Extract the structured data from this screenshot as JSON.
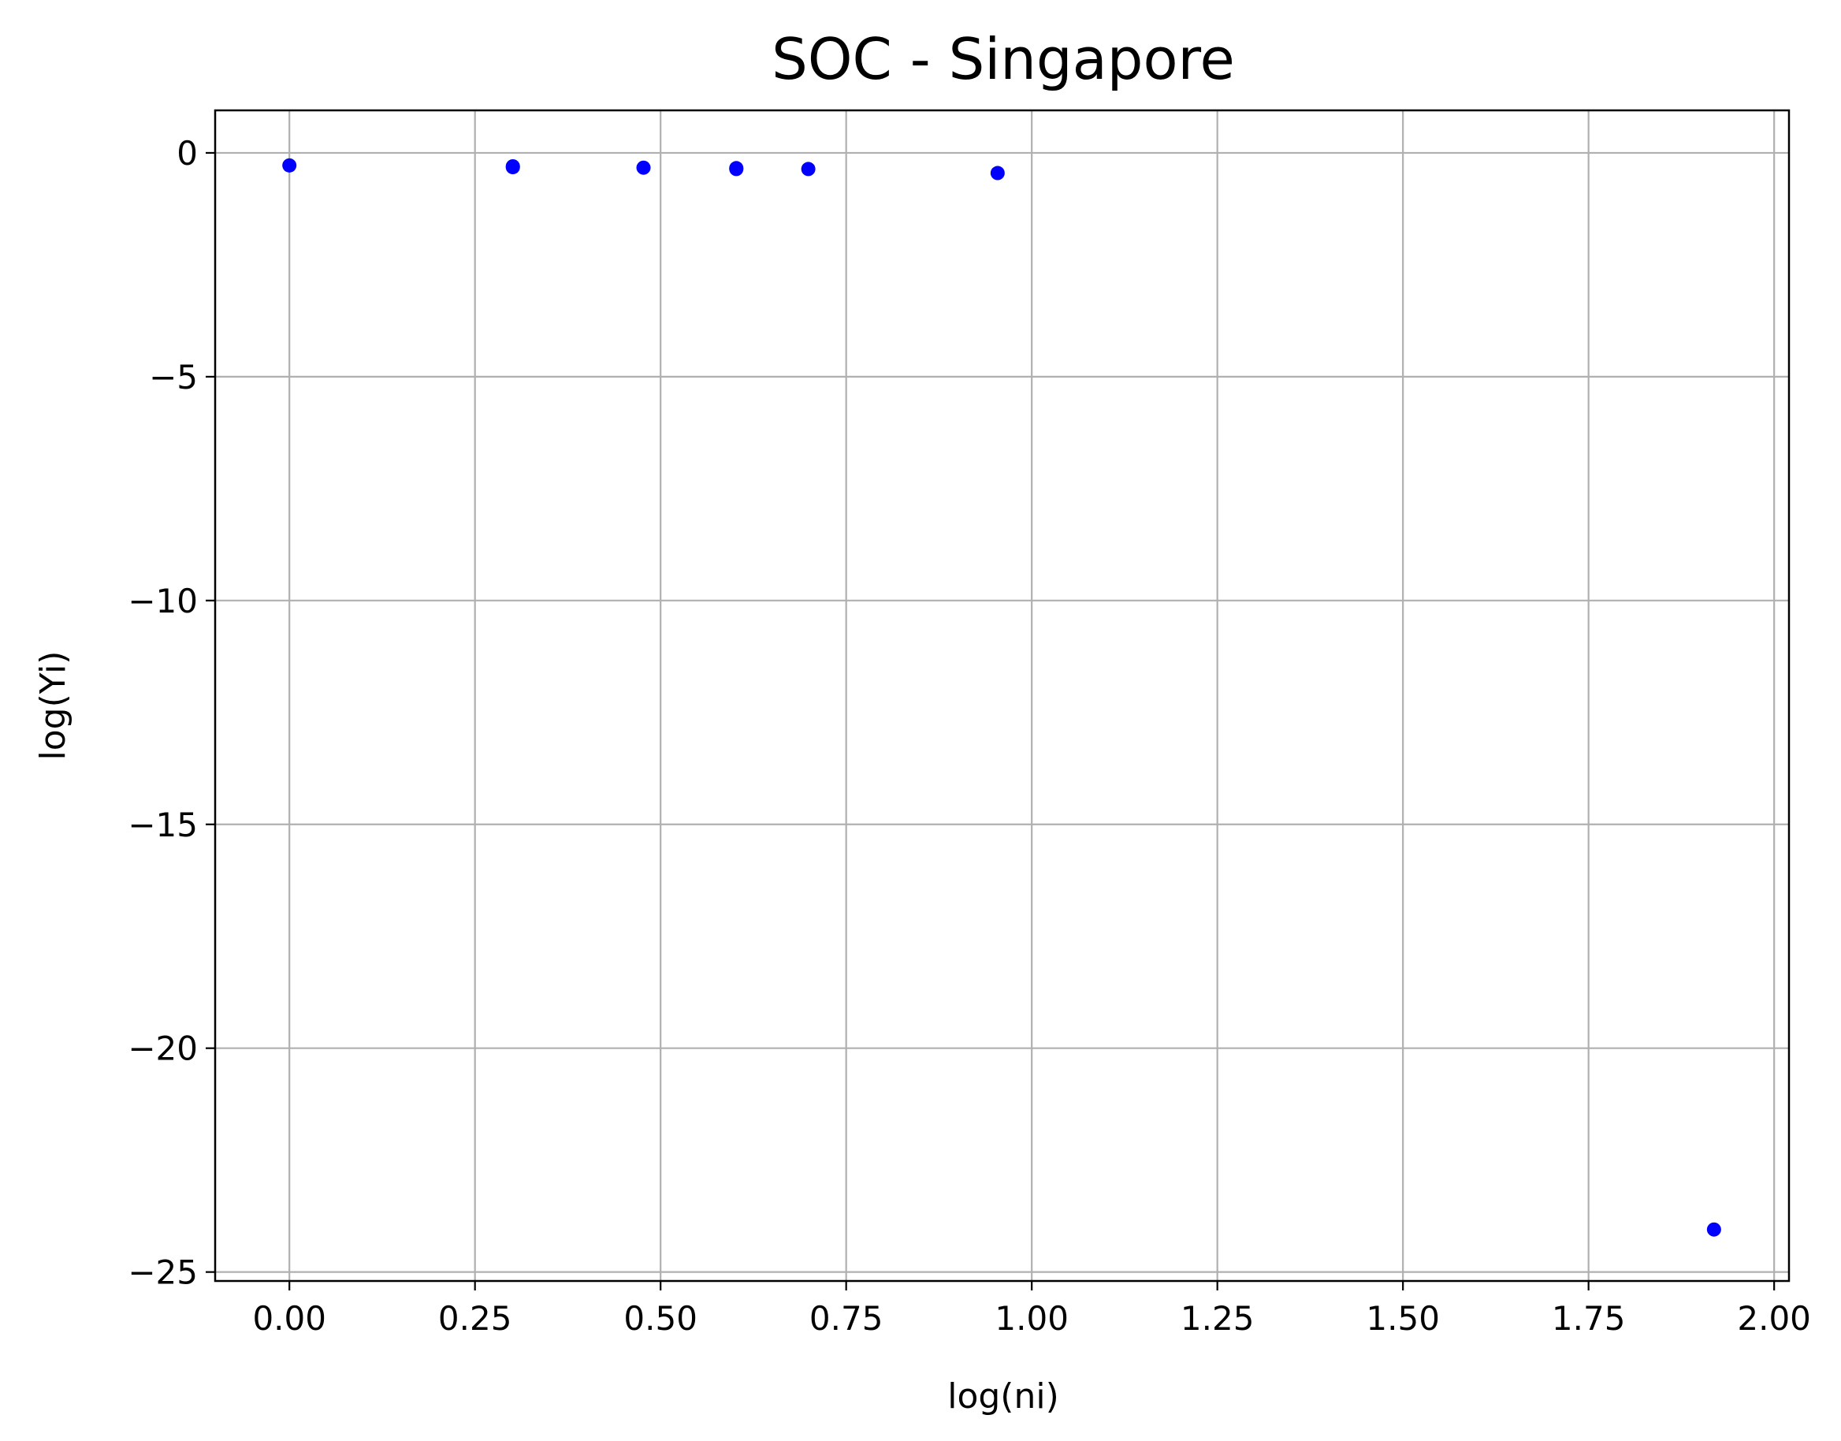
{
  "chart_data": {
    "type": "scatter",
    "title": "SOC - Singapore",
    "xlabel": "log(ni)",
    "ylabel": "log(Yi)",
    "xlim": [
      -0.1,
      2.02
    ],
    "ylim": [
      -25.2,
      0.95
    ],
    "xticks": [
      0.0,
      0.25,
      0.5,
      0.75,
      1.0,
      1.25,
      1.5,
      1.75,
      2.0
    ],
    "xtick_labels": [
      "0.00",
      "0.25",
      "0.50",
      "0.75",
      "1.00",
      "1.25",
      "1.50",
      "1.75",
      "2.00"
    ],
    "yticks": [
      0,
      -5,
      -10,
      -15,
      -20,
      -25
    ],
    "ytick_labels": [
      "0",
      "−5",
      "−10",
      "−15",
      "−20",
      "−25"
    ],
    "grid": true,
    "marker_color": "#0000ff",
    "series": [
      {
        "x": [
          0.0,
          0.301,
          0.301,
          0.477,
          0.602,
          0.602,
          0.699,
          0.954,
          1.919
        ],
        "y": [
          -0.28,
          -0.3,
          -0.32,
          -0.33,
          -0.34,
          -0.36,
          -0.36,
          -0.45,
          -24.05
        ]
      }
    ]
  }
}
